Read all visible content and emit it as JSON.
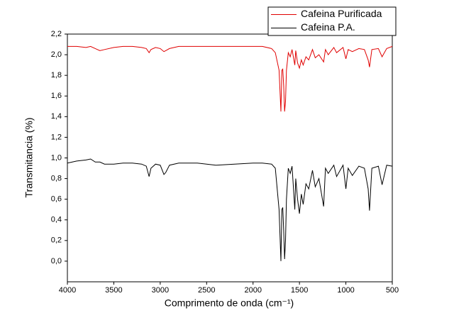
{
  "chart_data": {
    "type": "line",
    "x_label": "Comprimento de onda (cm⁻¹)",
    "y_label": "Transmitancia (%)",
    "xlim": [
      4000,
      500
    ],
    "xticks": [
      4000,
      3500,
      3000,
      2500,
      2000,
      1500,
      1000,
      500
    ],
    "ylim": [
      -0.2,
      2.2
    ],
    "yticks": [
      {
        "value": 0.0,
        "label": "0,0"
      },
      {
        "value": 0.2,
        "label": "0,2"
      },
      {
        "value": 0.4,
        "label": "0,4"
      },
      {
        "value": 0.6,
        "label": "0,6"
      },
      {
        "value": 0.8,
        "label": "0,8"
      },
      {
        "value": 1.0,
        "label": "1,0"
      },
      {
        "value": 1.2,
        "label": "1,2"
      },
      {
        "value": 1.4,
        "label": "1,4"
      },
      {
        "value": 1.6,
        "label": "1,6"
      },
      {
        "value": 1.8,
        "label": "1,8"
      },
      {
        "value": 2.0,
        "label": "2,0"
      },
      {
        "value": 2.2,
        "label": "2,2"
      }
    ],
    "legend": "upper right",
    "x": [
      4000,
      3900,
      3800,
      3750,
      3700,
      3650,
      3600,
      3500,
      3400,
      3300,
      3200,
      3150,
      3120,
      3100,
      3050,
      3000,
      2960,
      2940,
      2900,
      2800,
      2600,
      2400,
      2200,
      2000,
      1900,
      1800,
      1760,
      1720,
      1700,
      1690,
      1680,
      1670,
      1660,
      1650,
      1640,
      1620,
      1600,
      1580,
      1550,
      1540,
      1520,
      1500,
      1480,
      1460,
      1430,
      1400,
      1360,
      1330,
      1290,
      1240,
      1220,
      1190,
      1130,
      1100,
      1030,
      1000,
      975,
      930,
      860,
      800,
      760,
      745,
      720,
      650,
      610,
      560,
      500
    ],
    "series": [
      {
        "name": "Cafeina Purificada",
        "color": "#e00000",
        "values": [
          2.08,
          2.08,
          2.07,
          2.08,
          2.06,
          2.04,
          2.05,
          2.07,
          2.08,
          2.08,
          2.07,
          2.06,
          2.02,
          2.05,
          2.07,
          2.06,
          2.03,
          2.04,
          2.06,
          2.08,
          2.08,
          2.08,
          2.08,
          2.08,
          2.08,
          2.06,
          2.02,
          1.85,
          1.45,
          1.85,
          1.86,
          1.7,
          1.45,
          1.55,
          1.85,
          2.02,
          1.98,
          2.05,
          1.9,
          2.04,
          1.92,
          1.87,
          1.95,
          1.9,
          1.98,
          1.95,
          2.05,
          1.97,
          2.0,
          1.93,
          2.05,
          2.0,
          2.07,
          2.02,
          2.07,
          1.96,
          2.05,
          2.03,
          2.06,
          2.05,
          1.95,
          1.88,
          2.05,
          2.06,
          1.98,
          2.06,
          2.08
        ]
      },
      {
        "name": "Cafeina P.A.",
        "color": "#000000",
        "values": [
          0.95,
          0.97,
          0.98,
          0.99,
          0.96,
          0.96,
          0.94,
          0.94,
          0.95,
          0.95,
          0.94,
          0.92,
          0.82,
          0.9,
          0.94,
          0.93,
          0.84,
          0.86,
          0.93,
          0.95,
          0.95,
          0.93,
          0.94,
          0.95,
          0.95,
          0.94,
          0.9,
          0.5,
          0.0,
          0.5,
          0.52,
          0.3,
          0.02,
          0.2,
          0.6,
          0.9,
          0.85,
          0.92,
          0.5,
          0.8,
          0.6,
          0.46,
          0.65,
          0.55,
          0.75,
          0.7,
          0.88,
          0.72,
          0.8,
          0.53,
          0.9,
          0.85,
          0.93,
          0.82,
          0.93,
          0.7,
          0.9,
          0.83,
          0.92,
          0.9,
          0.7,
          0.49,
          0.9,
          0.92,
          0.74,
          0.93,
          0.92
        ]
      }
    ]
  }
}
